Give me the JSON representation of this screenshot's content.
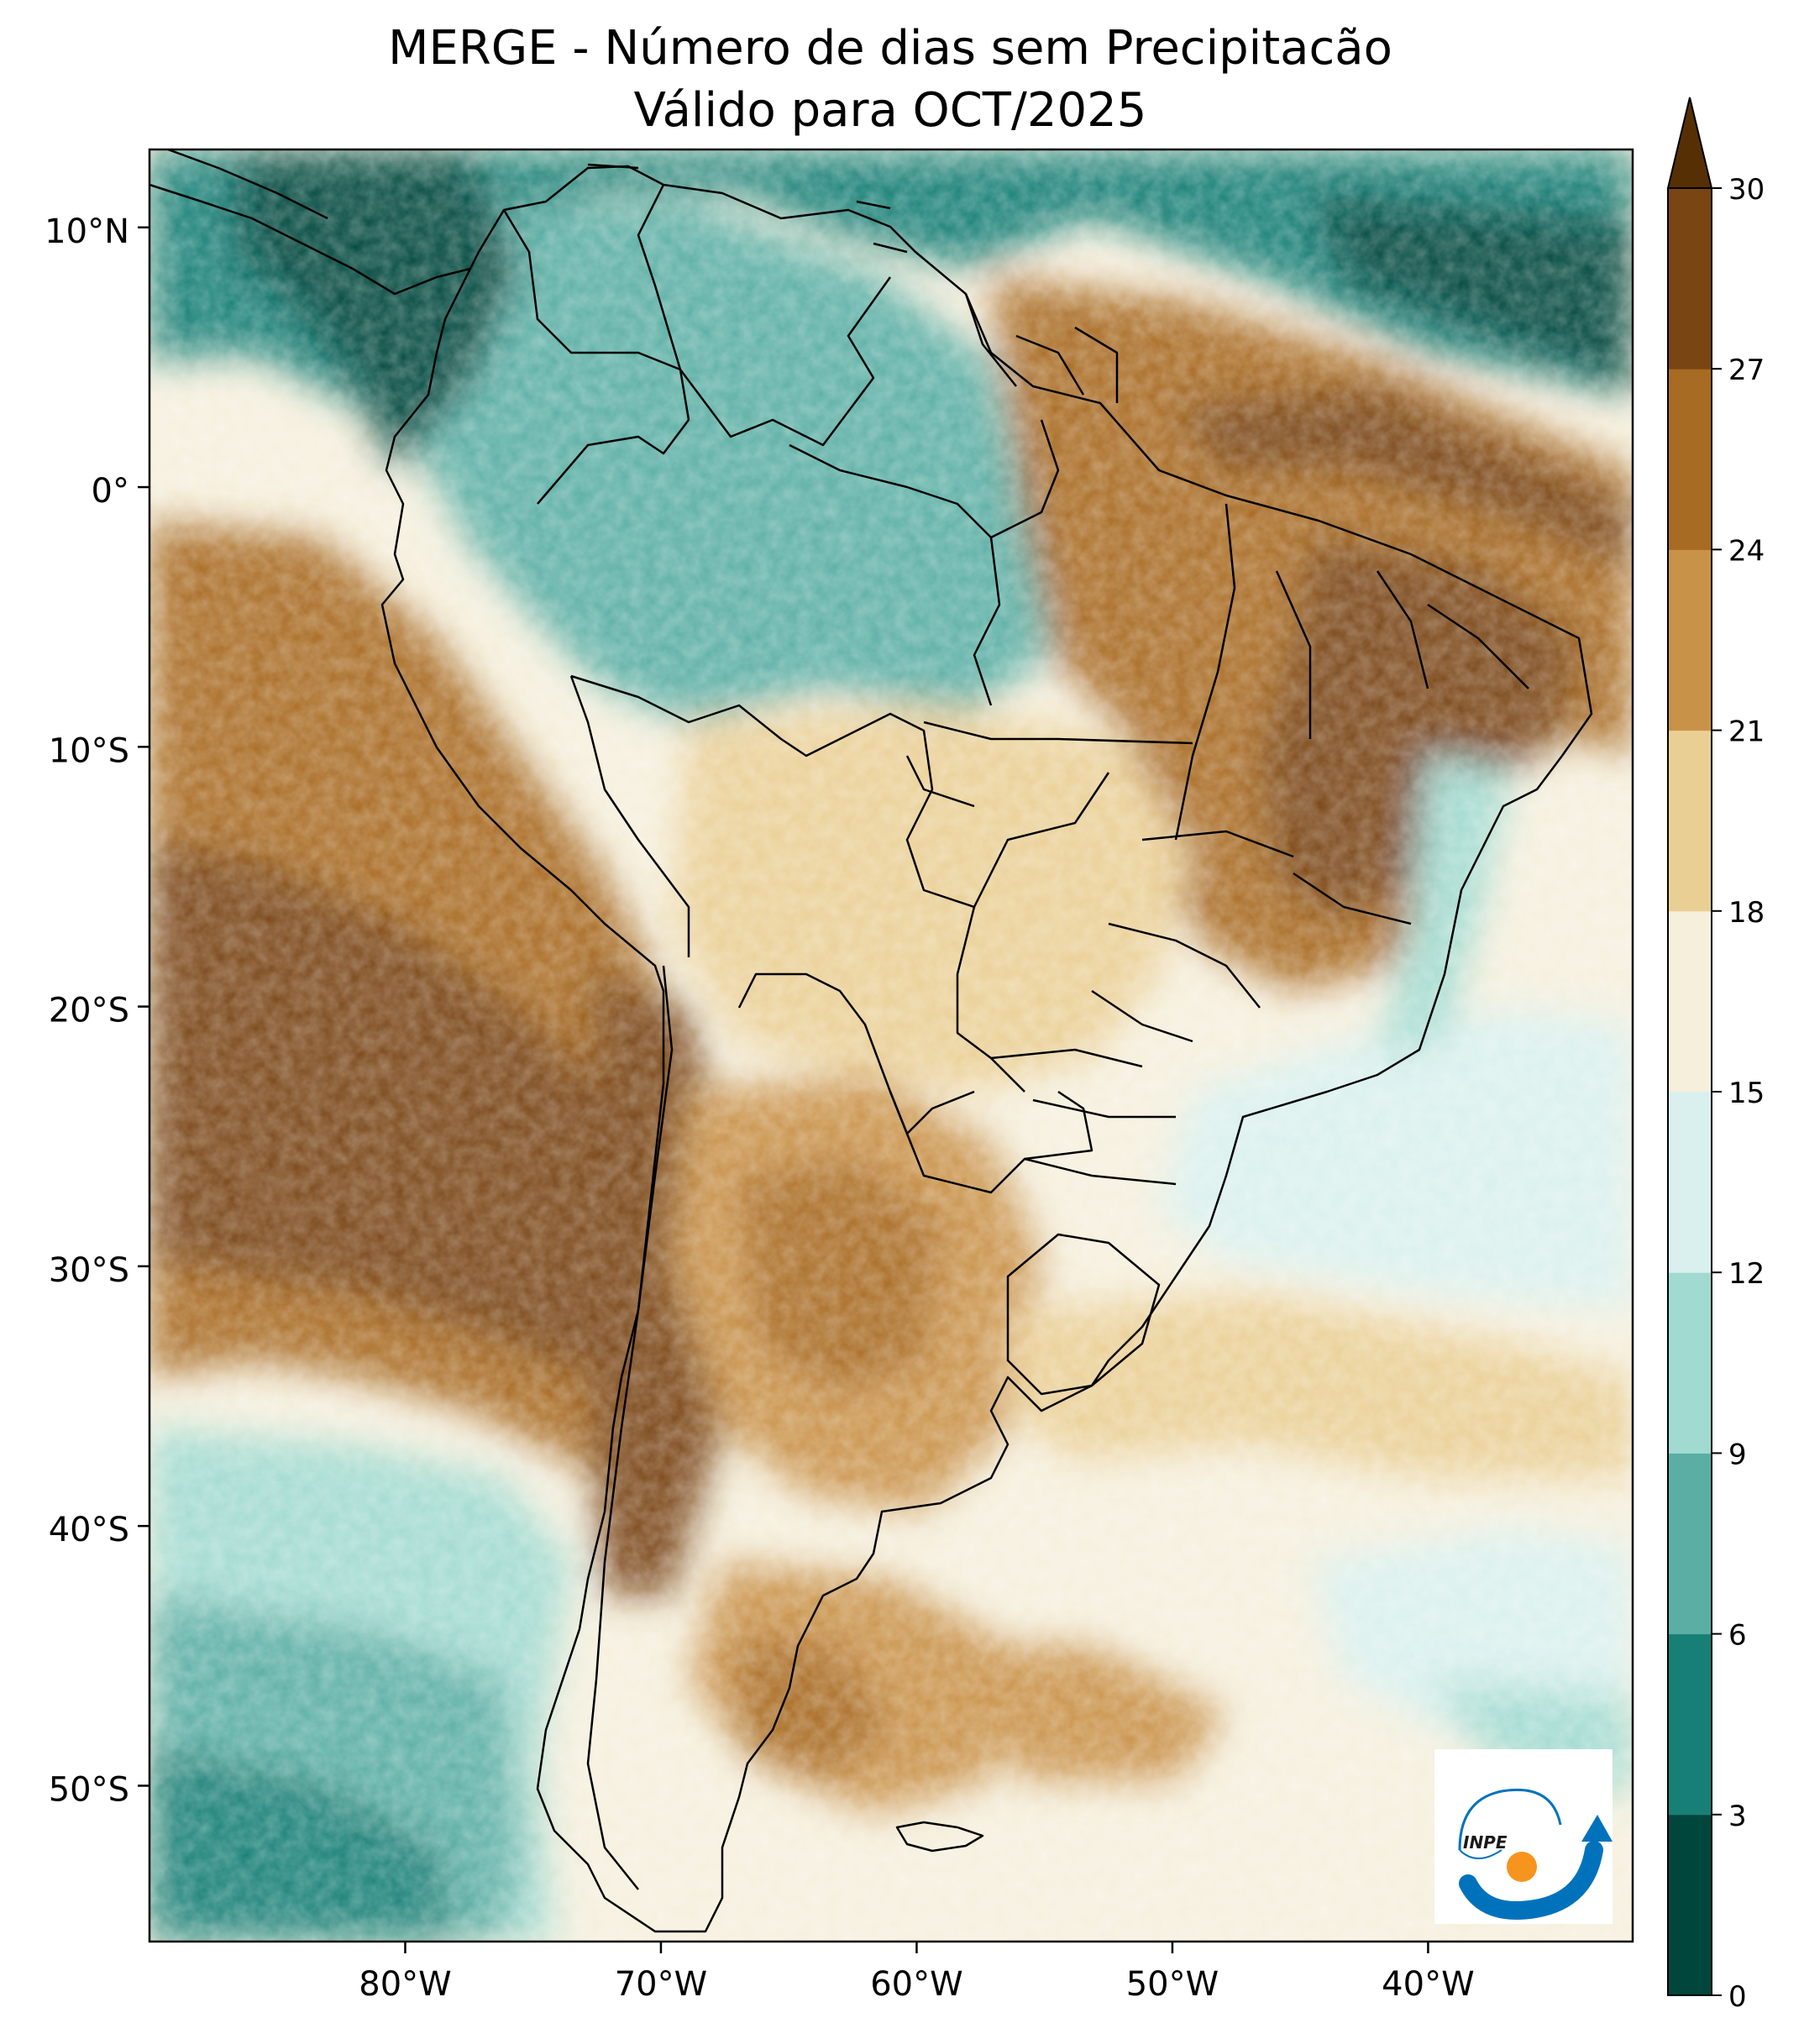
{
  "title": {
    "line1": "MERGE - Número de dias sem Precipitacão",
    "line2": "Válido para OCT/2025"
  },
  "map": {
    "lat_ticks": [
      {
        "value": 10,
        "label": "10°N"
      },
      {
        "value": 0,
        "label": "0°"
      },
      {
        "value": -10,
        "label": "10°S"
      },
      {
        "value": -20,
        "label": "20°S"
      },
      {
        "value": -30,
        "label": "30°S"
      },
      {
        "value": -40,
        "label": "40°S"
      },
      {
        "value": -50,
        "label": "50°S"
      }
    ],
    "lon_ticks": [
      {
        "value": -80,
        "label": "80°W"
      },
      {
        "value": -70,
        "label": "70°W"
      },
      {
        "value": -60,
        "label": "60°W"
      },
      {
        "value": -50,
        "label": "50°W"
      },
      {
        "value": -40,
        "label": "40°W"
      }
    ],
    "extent": {
      "lon_min": -90,
      "lon_max": -32,
      "lat_min": -56,
      "lat_max": 13
    }
  },
  "colorbar": {
    "ticks": [
      "0",
      "3",
      "6",
      "9",
      "12",
      "15",
      "18",
      "21",
      "24",
      "27",
      "30"
    ],
    "colors": [
      "#01463c",
      "#187f76",
      "#5aaea4",
      "#a1dad0",
      "#d9f0ee",
      "#f5efdc",
      "#eacf95",
      "#c99249",
      "#a86b23",
      "#794513",
      "#563004"
    ],
    "extend": "max"
  },
  "logo": {
    "text": "INPE",
    "blue": "#0072bc",
    "orange": "#f7941d"
  }
}
